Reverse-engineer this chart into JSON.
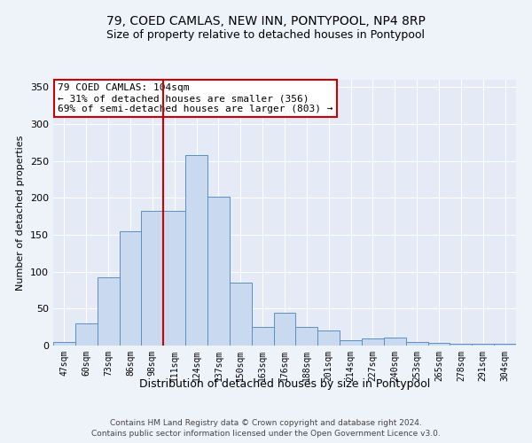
{
  "title1": "79, COED CAMLAS, NEW INN, PONTYPOOL, NP4 8RP",
  "title2": "Size of property relative to detached houses in Pontypool",
  "xlabel": "Distribution of detached houses by size in Pontypool",
  "ylabel": "Number of detached properties",
  "categories": [
    "47sqm",
    "60sqm",
    "73sqm",
    "86sqm",
    "98sqm",
    "111sqm",
    "124sqm",
    "137sqm",
    "150sqm",
    "163sqm",
    "176sqm",
    "188sqm",
    "201sqm",
    "214sqm",
    "227sqm",
    "240sqm",
    "253sqm",
    "265sqm",
    "278sqm",
    "291sqm",
    "304sqm"
  ],
  "values": [
    5,
    30,
    93,
    155,
    182,
    182,
    258,
    202,
    85,
    25,
    45,
    25,
    20,
    7,
    10,
    11,
    5,
    4,
    3,
    2,
    2
  ],
  "bar_color": "#c9d9f0",
  "bar_edge_color": "#5b8fbe",
  "vline_color": "#cc0000",
  "vline_index": 5,
  "annotation_text": "79 COED CAMLAS: 104sqm\n← 31% of detached houses are smaller (356)\n69% of semi-detached houses are larger (803) →",
  "annotation_box_color": "#ffffff",
  "annotation_box_edge": "#cc0000",
  "ylim": [
    0,
    360
  ],
  "yticks": [
    0,
    50,
    100,
    150,
    200,
    250,
    300,
    350
  ],
  "footer1": "Contains HM Land Registry data © Crown copyright and database right 2024.",
  "footer2": "Contains public sector information licensed under the Open Government Licence v3.0.",
  "bg_color": "#eef2f9",
  "plot_bg_color": "#e4eaf6"
}
